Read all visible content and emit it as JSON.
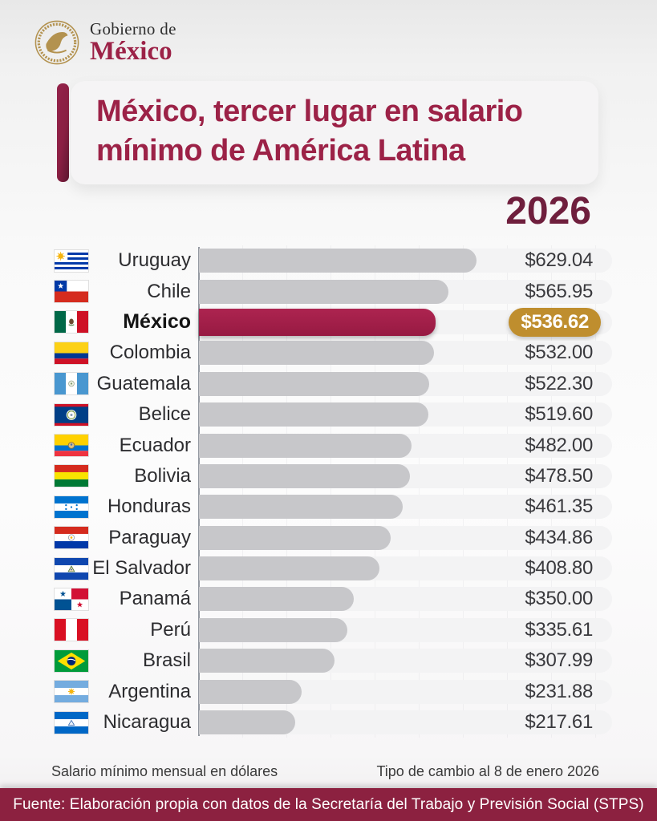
{
  "logo": {
    "seal_icon": "mexico-eagle-seal-icon",
    "line1": "Gobierno de",
    "line2": "México"
  },
  "title": {
    "line1": "México, tercer lugar en salario",
    "line2": "mínimo de América Latina",
    "year": "2026"
  },
  "chart_data": {
    "type": "bar",
    "orientation": "horizontal",
    "title": "México, tercer lugar en salario mínimo de América Latina",
    "subtitle_year": "2026",
    "unit": "Salario mínimo mensual en dólares",
    "xlim": [
      0,
      936
    ],
    "gridline_interval": 100,
    "grid": true,
    "highlighted_category": "México",
    "rows": [
      {
        "country": "Uruguay",
        "slug": "uruguay",
        "flag": "uy",
        "value": 629.04,
        "label": "$629.04",
        "highlight": false
      },
      {
        "country": "Chile",
        "slug": "chile",
        "flag": "cl",
        "value": 565.95,
        "label": "$565.95",
        "highlight": false
      },
      {
        "country": "México",
        "slug": "mexico",
        "flag": "mx",
        "value": 536.62,
        "label": "$536.62",
        "highlight": true
      },
      {
        "country": "Colombia",
        "slug": "colombia",
        "flag": "co",
        "value": 532.0,
        "label": "$532.00",
        "highlight": false
      },
      {
        "country": "Guatemala",
        "slug": "guatemala",
        "flag": "gt",
        "value": 522.3,
        "label": "$522.30",
        "highlight": false
      },
      {
        "country": "Belice",
        "slug": "belice",
        "flag": "bz",
        "value": 519.6,
        "label": "$519.60",
        "highlight": false
      },
      {
        "country": "Ecuador",
        "slug": "ecuador",
        "flag": "ec",
        "value": 482.0,
        "label": "$482.00",
        "highlight": false
      },
      {
        "country": "Bolivia",
        "slug": "bolivia",
        "flag": "bo",
        "value": 478.5,
        "label": "$478.50",
        "highlight": false
      },
      {
        "country": "Honduras",
        "slug": "honduras",
        "flag": "hn",
        "value": 461.35,
        "label": "$461.35",
        "highlight": false
      },
      {
        "country": "Paraguay",
        "slug": "paraguay",
        "flag": "py",
        "value": 434.86,
        "label": "$434.86",
        "highlight": false
      },
      {
        "country": "El Salvador",
        "slug": "el-salvador",
        "flag": "sv",
        "value": 408.8,
        "label": "$408.80",
        "highlight": false
      },
      {
        "country": "Panamá",
        "slug": "panama",
        "flag": "pa",
        "value": 350.0,
        "label": "$350.00",
        "highlight": false
      },
      {
        "country": "Perú",
        "slug": "peru",
        "flag": "pe",
        "value": 335.61,
        "label": "$335.61",
        "highlight": false
      },
      {
        "country": "Brasil",
        "slug": "brasil",
        "flag": "br",
        "value": 307.99,
        "label": "$307.99",
        "highlight": false
      },
      {
        "country": "Argentina",
        "slug": "argentina",
        "flag": "ar",
        "value": 231.88,
        "label": "$231.88",
        "highlight": false
      },
      {
        "country": "Nicaragua",
        "slug": "nicaragua",
        "flag": "ni",
        "value": 217.61,
        "label": "$217.61",
        "highlight": false
      }
    ]
  },
  "footnotes": {
    "left": "Salario mínimo mensual en dólares",
    "right": "Tipo de cambio al 8 de enero 2026"
  },
  "footer": {
    "source": "Fuente: Elaboración propia con datos de la Secretaría del Trabajo y Previsión Social (STPS)"
  },
  "colors": {
    "accent": "#9c2247",
    "title_text": "#9c2247",
    "year_text": "#6f1f3d",
    "bar_default": "#c7c7ca",
    "bar_highlight": "#a31c4a",
    "badge_bg": "#bf8e2e",
    "badge_text": "#ffffff",
    "track_bg": "#f3f3f4",
    "value_text": "#39393d",
    "label_text": "#2d2d30",
    "footer_bg": "#8c2140",
    "seal_gold": "#b3924f"
  }
}
